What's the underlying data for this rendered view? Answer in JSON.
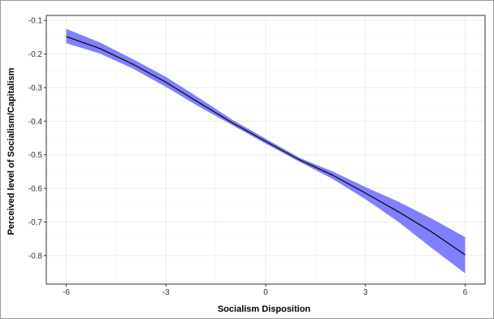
{
  "chart_data": {
    "type": "line",
    "title": "",
    "xlabel": "Socialism Disposition",
    "ylabel": "Perceived level of Socialism/Capitalism",
    "xlim": [
      -6.6,
      6.6
    ],
    "ylim": [
      -0.885,
      -0.085
    ],
    "x_ticks": [
      -6,
      -3,
      0,
      3,
      6
    ],
    "x_tick_labels": [
      "-6",
      "-3",
      "0",
      "3",
      "6"
    ],
    "y_ticks": [
      -0.1,
      -0.2,
      -0.3,
      -0.4,
      -0.5,
      -0.6,
      -0.7,
      -0.8
    ],
    "y_tick_labels": [
      "-0.1",
      "-0.2",
      "-0.3",
      "-0.4",
      "-0.5",
      "-0.6",
      "-0.7",
      "-0.8"
    ],
    "grid": true,
    "legend": "none",
    "series": [
      {
        "x": [
          -6,
          -5,
          -4,
          -3,
          -2,
          -1,
          0,
          1,
          2,
          3,
          4,
          5,
          6
        ],
        "y": [
          -0.148,
          -0.183,
          -0.23,
          -0.284,
          -0.345,
          -0.405,
          -0.46,
          -0.514,
          -0.56,
          -0.614,
          -0.67,
          -0.73,
          -0.798
        ],
        "lower": [
          -0.168,
          -0.198,
          -0.243,
          -0.298,
          -0.357,
          -0.412,
          -0.467,
          -0.52,
          -0.571,
          -0.632,
          -0.7,
          -0.778,
          -0.853
        ],
        "upper": [
          -0.125,
          -0.165,
          -0.215,
          -0.268,
          -0.331,
          -0.396,
          -0.452,
          -0.508,
          -0.549,
          -0.596,
          -0.64,
          -0.69,
          -0.745
        ],
        "line_color": "#000000",
        "band_color": "#8080ff"
      }
    ],
    "colors": {
      "panel_border": "#333333",
      "grid_major": "#ebebeb",
      "grid_minor": "#f4f4f4",
      "frame_border": "#9a9a9a"
    }
  }
}
